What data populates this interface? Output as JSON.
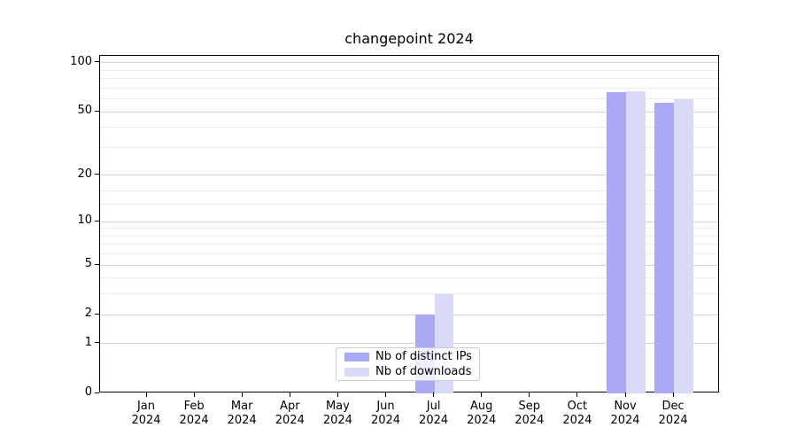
{
  "title": "changepoint 2024",
  "chart_data": {
    "type": "bar",
    "title": "changepoint 2024",
    "categories": [
      "Jan 2024",
      "Feb 2024",
      "Mar 2024",
      "Apr 2024",
      "May 2024",
      "Jun 2024",
      "Jul 2024",
      "Aug 2024",
      "Sep 2024",
      "Oct 2024",
      "Nov 2024",
      "Dec 2024"
    ],
    "series": [
      {
        "name": "Nb of distinct IPs",
        "color": "#a9a9f5",
        "values": [
          0,
          0,
          0,
          0,
          0,
          0,
          2,
          0,
          0,
          0,
          66,
          57
        ]
      },
      {
        "name": "Nb of downloads",
        "color": "#d9d9f8",
        "values": [
          0,
          0,
          0,
          0,
          0,
          0,
          3,
          0,
          0,
          0,
          67,
          60
        ]
      }
    ],
    "xlabel": "",
    "ylabel": "",
    "y_scale": "log10(1+x)",
    "ylim": [
      0,
      110
    ],
    "y_ticks": [
      0,
      1,
      2,
      5,
      10,
      20,
      50,
      100
    ],
    "y_tick_labels": [
      "0",
      "1",
      "2",
      "5",
      "10",
      "20",
      "50",
      "100"
    ],
    "y_minor_ticks": [
      3,
      4,
      6,
      7,
      8,
      9,
      13,
      16,
      30,
      40,
      60,
      70,
      80,
      90
    ],
    "grid": "horizontal",
    "legend_position": "lower center",
    "grid_major_color": "#d4d4d4",
    "grid_minor_color": "#ececec"
  }
}
